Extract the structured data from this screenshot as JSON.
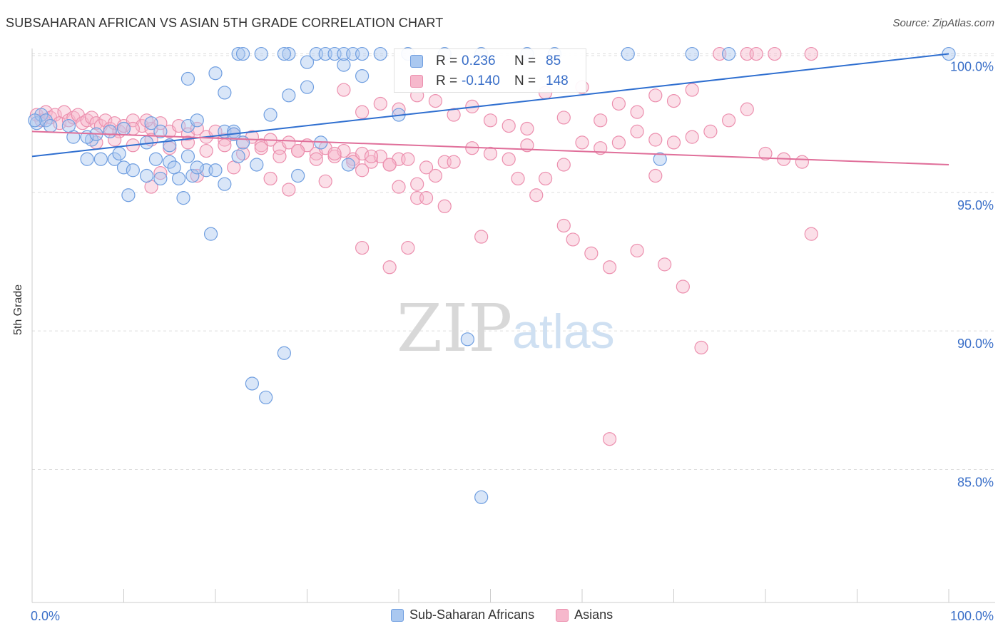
{
  "header": {
    "title": "SUBSAHARAN AFRICAN VS ASIAN 5TH GRADE CORRELATION CHART",
    "source": "Source: ZipAtlas.com"
  },
  "watermark": {
    "zip": "ZIP",
    "atlas": "atlas"
  },
  "stats": {
    "blue": {
      "r_label": "R =",
      "r_value": "0.236",
      "n_label": "N =",
      "n_value": "85"
    },
    "pink": {
      "r_label": "R =",
      "r_value": "-0.140",
      "n_label": "N =",
      "n_value": "148"
    }
  },
  "legend": {
    "blue_label": "Sub-Saharan Africans",
    "pink_label": "Asians"
  },
  "colors": {
    "blue_fill": "#aac8f0",
    "blue_stroke": "#6f9ee0",
    "blue_line": "#2f6fd0",
    "pink_fill": "#f6b8cc",
    "pink_stroke": "#ec8fae",
    "pink_line": "#e06f9a",
    "tick_text": "#3a6fc8",
    "grid": "#dddddd"
  },
  "chart_data": {
    "type": "scatter",
    "title": "SUBSAHARAN AFRICAN VS ASIAN 5TH GRADE CORRELATION CHART",
    "xlabel": "",
    "ylabel": "5th Grade",
    "xlim": [
      0,
      100
    ],
    "ylim": [
      80.2,
      100.4
    ],
    "x_tick_labels": [
      {
        "value": 0,
        "label": "0.0%"
      },
      {
        "value": 100,
        "label": "100.0%"
      }
    ],
    "y_tick_labels": [
      {
        "value": 100,
        "label": "100.0%"
      },
      {
        "value": 95,
        "label": "95.0%"
      },
      {
        "value": 90,
        "label": "90.0%"
      },
      {
        "value": 85,
        "label": "85.0%"
      }
    ],
    "x_minor_ticks": [
      0,
      10,
      20,
      30,
      40,
      50,
      60,
      70,
      80,
      90,
      100
    ],
    "grid": true,
    "legend_position": "bottom-center",
    "series": [
      {
        "name": "Sub-Saharan Africans",
        "color": "#aac8f0",
        "trend": {
          "x": [
            0,
            100
          ],
          "y": [
            96.3,
            100.0
          ]
        },
        "points": [
          [
            0.5,
            97.5
          ],
          [
            1.0,
            97.8
          ],
          [
            1.5,
            97.6
          ],
          [
            2.0,
            97.4
          ],
          [
            4.5,
            97.0
          ],
          [
            6.5,
            96.9
          ],
          [
            8.5,
            97.2
          ],
          [
            6.0,
            97.0
          ],
          [
            10.0,
            97.3
          ],
          [
            7.0,
            97.1
          ],
          [
            4.0,
            97.4
          ],
          [
            12.5,
            96.8
          ],
          [
            13.0,
            97.5
          ],
          [
            15.0,
            96.7
          ],
          [
            14.0,
            97.2
          ],
          [
            17.0,
            97.4
          ],
          [
            18.0,
            97.6
          ],
          [
            21.0,
            97.2
          ],
          [
            22.0,
            97.2
          ],
          [
            23.0,
            96.8
          ],
          [
            6.0,
            96.2
          ],
          [
            9.0,
            96.2
          ],
          [
            10.0,
            95.9
          ],
          [
            11.0,
            95.8
          ],
          [
            12.5,
            95.6
          ],
          [
            14.0,
            95.5
          ],
          [
            16.0,
            95.5
          ],
          [
            17.5,
            95.6
          ],
          [
            19.0,
            95.8
          ],
          [
            18.0,
            95.9
          ],
          [
            21.0,
            95.3
          ],
          [
            15.0,
            96.1
          ],
          [
            13.5,
            96.2
          ],
          [
            15.5,
            95.9
          ],
          [
            17.0,
            96.3
          ],
          [
            20.0,
            95.8
          ],
          [
            22.5,
            96.3
          ],
          [
            24.5,
            96.0
          ],
          [
            29.0,
            95.6
          ],
          [
            26.0,
            97.8
          ],
          [
            7.5,
            96.2
          ],
          [
            9.5,
            96.4
          ],
          [
            10.5,
            94.9
          ],
          [
            16.5,
            94.8
          ],
          [
            19.5,
            93.5
          ],
          [
            22.0,
            97.1
          ],
          [
            17.0,
            99.1
          ],
          [
            20.0,
            99.3
          ],
          [
            21.0,
            98.6
          ],
          [
            28.0,
            98.5
          ],
          [
            30.0,
            98.8
          ],
          [
            34.0,
            99.6
          ],
          [
            36.0,
            99.2
          ],
          [
            30.0,
            99.7
          ],
          [
            31.0,
            100.0
          ],
          [
            32.0,
            100.0
          ],
          [
            33.0,
            100.0
          ],
          [
            34.0,
            100.0
          ],
          [
            35.0,
            100.0
          ],
          [
            36.0,
            100.0
          ],
          [
            28.0,
            100.0
          ],
          [
            27.5,
            100.0
          ],
          [
            22.5,
            100.0
          ],
          [
            23.0,
            100.0
          ],
          [
            25.0,
            100.0
          ],
          [
            38.0,
            100.0
          ],
          [
            41.0,
            100.0
          ],
          [
            45.0,
            100.0
          ],
          [
            49.0,
            100.0
          ],
          [
            54.0,
            100.0
          ],
          [
            57.0,
            100.0
          ],
          [
            65.0,
            100.0
          ],
          [
            72.0,
            100.0
          ],
          [
            76.0,
            100.0
          ],
          [
            100.0,
            100.0
          ],
          [
            40.0,
            97.8
          ],
          [
            47.5,
            89.7
          ],
          [
            34.5,
            96.0
          ],
          [
            31.5,
            96.8
          ],
          [
            27.5,
            89.2
          ],
          [
            24.0,
            88.1
          ],
          [
            25.5,
            87.6
          ],
          [
            49.0,
            84.0
          ],
          [
            68.5,
            96.2
          ],
          [
            0.3,
            97.6
          ]
        ]
      },
      {
        "name": "Asians",
        "color": "#f6b8cc",
        "trend": {
          "x": [
            0,
            100
          ],
          "y": [
            97.2,
            96.0
          ]
        },
        "points": [
          [
            0.5,
            97.8
          ],
          [
            1.0,
            97.6
          ],
          [
            1.5,
            97.9
          ],
          [
            2.0,
            97.7
          ],
          [
            2.5,
            97.8
          ],
          [
            3.0,
            97.5
          ],
          [
            3.5,
            97.9
          ],
          [
            4.0,
            97.6
          ],
          [
            4.5,
            97.7
          ],
          [
            5.0,
            97.8
          ],
          [
            5.5,
            97.5
          ],
          [
            6.0,
            97.6
          ],
          [
            6.5,
            97.7
          ],
          [
            7.0,
            97.5
          ],
          [
            7.5,
            97.4
          ],
          [
            8.0,
            97.6
          ],
          [
            8.5,
            97.3
          ],
          [
            9.0,
            97.5
          ],
          [
            9.5,
            97.2
          ],
          [
            10.0,
            97.4
          ],
          [
            11.0,
            97.6
          ],
          [
            12.0,
            97.4
          ],
          [
            13.0,
            97.3
          ],
          [
            14.0,
            97.5
          ],
          [
            15.0,
            97.2
          ],
          [
            16.0,
            97.4
          ],
          [
            17.0,
            97.1
          ],
          [
            18.0,
            97.3
          ],
          [
            19.0,
            97.0
          ],
          [
            20.0,
            97.2
          ],
          [
            21.0,
            96.9
          ],
          [
            22.0,
            97.1
          ],
          [
            23.0,
            96.8
          ],
          [
            24.0,
            97.0
          ],
          [
            25.0,
            96.7
          ],
          [
            26.0,
            96.9
          ],
          [
            27.0,
            96.6
          ],
          [
            28.0,
            96.8
          ],
          [
            29.0,
            96.5
          ],
          [
            30.0,
            96.7
          ],
          [
            31.0,
            96.4
          ],
          [
            32.0,
            96.6
          ],
          [
            33.0,
            96.3
          ],
          [
            34.0,
            96.5
          ],
          [
            35.0,
            96.2
          ],
          [
            36.0,
            96.4
          ],
          [
            37.0,
            96.1
          ],
          [
            38.0,
            96.3
          ],
          [
            39.0,
            96.0
          ],
          [
            40.0,
            96.2
          ],
          [
            7.0,
            96.8
          ],
          [
            9.0,
            96.9
          ],
          [
            11.0,
            96.7
          ],
          [
            13.0,
            96.9
          ],
          [
            15.0,
            96.6
          ],
          [
            17.0,
            96.8
          ],
          [
            19.0,
            96.5
          ],
          [
            21.0,
            96.7
          ],
          [
            23.0,
            96.4
          ],
          [
            25.0,
            96.6
          ],
          [
            27.0,
            96.3
          ],
          [
            29.0,
            96.5
          ],
          [
            31.0,
            96.2
          ],
          [
            33.0,
            96.4
          ],
          [
            35.0,
            96.1
          ],
          [
            37.0,
            96.3
          ],
          [
            39.0,
            96.0
          ],
          [
            41.0,
            96.2
          ],
          [
            43.0,
            95.9
          ],
          [
            45.0,
            96.1
          ],
          [
            14.0,
            95.7
          ],
          [
            18.0,
            95.6
          ],
          [
            22.0,
            95.9
          ],
          [
            26.0,
            95.5
          ],
          [
            28.0,
            95.1
          ],
          [
            32.0,
            95.4
          ],
          [
            36.0,
            95.8
          ],
          [
            40.0,
            95.2
          ],
          [
            42.0,
            95.3
          ],
          [
            44.0,
            95.6
          ],
          [
            46.0,
            96.1
          ],
          [
            48.0,
            96.6
          ],
          [
            50.0,
            96.4
          ],
          [
            52.0,
            96.2
          ],
          [
            54.0,
            96.7
          ],
          [
            56.0,
            95.5
          ],
          [
            58.0,
            96.0
          ],
          [
            60.0,
            96.8
          ],
          [
            62.0,
            96.6
          ],
          [
            64.0,
            96.8
          ],
          [
            66.0,
            97.2
          ],
          [
            68.0,
            96.9
          ],
          [
            70.0,
            96.8
          ],
          [
            72.0,
            97.0
          ],
          [
            74.0,
            97.2
          ],
          [
            76.0,
            97.6
          ],
          [
            78.0,
            98.0
          ],
          [
            80.0,
            96.4
          ],
          [
            82.0,
            96.2
          ],
          [
            84.0,
            96.1
          ],
          [
            34.0,
            98.7
          ],
          [
            36.0,
            97.9
          ],
          [
            38.0,
            98.2
          ],
          [
            40.0,
            98.0
          ],
          [
            42.0,
            98.5
          ],
          [
            44.0,
            98.3
          ],
          [
            46.0,
            97.8
          ],
          [
            48.0,
            98.1
          ],
          [
            50.0,
            97.6
          ],
          [
            52.0,
            97.4
          ],
          [
            54.0,
            97.3
          ],
          [
            56.0,
            98.6
          ],
          [
            58.0,
            97.7
          ],
          [
            60.0,
            98.8
          ],
          [
            62.0,
            97.6
          ],
          [
            64.0,
            98.2
          ],
          [
            66.0,
            97.9
          ],
          [
            68.0,
            98.5
          ],
          [
            70.0,
            98.3
          ],
          [
            72.0,
            98.7
          ],
          [
            49.0,
            93.4
          ],
          [
            53.0,
            95.5
          ],
          [
            55.0,
            94.9
          ],
          [
            59.0,
            93.3
          ],
          [
            61.0,
            92.8
          ],
          [
            63.0,
            92.3
          ],
          [
            66.0,
            92.9
          ],
          [
            69.0,
            92.4
          ],
          [
            71.0,
            91.6
          ],
          [
            73.0,
            89.4
          ],
          [
            68.0,
            95.6
          ],
          [
            58.0,
            93.8
          ],
          [
            85.0,
            93.5
          ],
          [
            36.0,
            93.0
          ],
          [
            39.0,
            92.3
          ],
          [
            41.0,
            93.0
          ],
          [
            42.0,
            94.8
          ],
          [
            43.0,
            94.8
          ],
          [
            45.0,
            94.5
          ],
          [
            63.0,
            86.1
          ],
          [
            75.0,
            100.0
          ],
          [
            78.0,
            100.0
          ],
          [
            79.0,
            100.0
          ],
          [
            81.0,
            100.0
          ],
          [
            85.0,
            100.0
          ],
          [
            13.0,
            95.2
          ],
          [
            11.0,
            97.3
          ],
          [
            12.5,
            97.6
          ]
        ]
      }
    ]
  }
}
